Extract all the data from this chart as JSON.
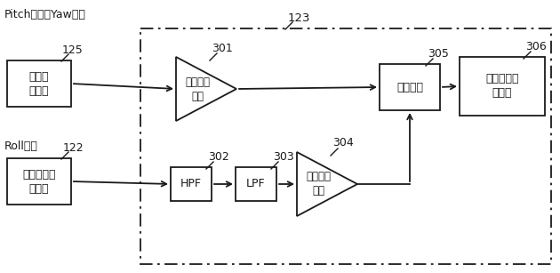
{
  "title_top_left": "Pitch方向、Yaw方向",
  "label_roll": "Roll方向",
  "label_123": "123",
  "label_125": "125",
  "label_122": "122",
  "label_301": "301",
  "label_302": "302",
  "label_303": "303",
  "label_304": "304",
  "label_305": "305",
  "label_306": "306",
  "box_camera_comm": "カメラ\n通信部",
  "box_camera_shake": "カメラ振れ\n検出部",
  "box_pixel1": "ピクセル\n変換",
  "box_hpf": "HPF",
  "box_lpf": "LPF",
  "box_pixel2": "ピクセル\n変換",
  "box_limitter": "リミッタ",
  "box_elec": "電子補正量\n設定部",
  "bg_color": "#ffffff",
  "line_color": "#1a1a1a",
  "text_color": "#1a1a1a"
}
